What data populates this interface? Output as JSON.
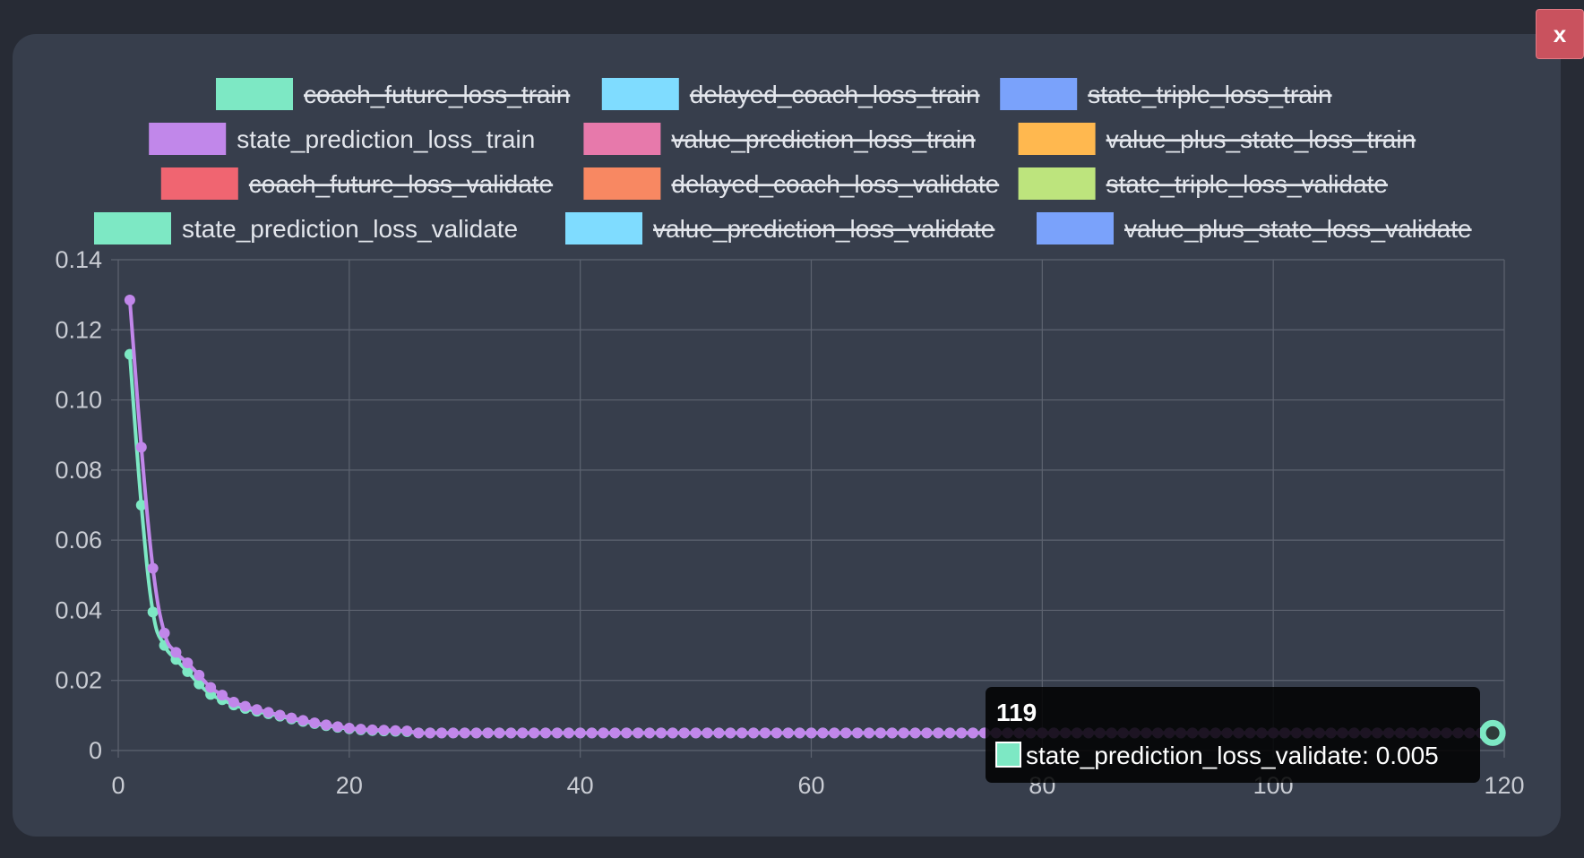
{
  "close_button": {
    "label": "x"
  },
  "chart_data": {
    "type": "line",
    "xlim": [
      0,
      120
    ],
    "ylim": [
      0,
      0.14
    ],
    "x_ticks": [
      "0",
      "20",
      "40",
      "60",
      "80",
      "100",
      "120"
    ],
    "y_ticks": [
      "0",
      "0.02",
      "0.04",
      "0.06",
      "0.08",
      "0.10",
      "0.12",
      "0.14"
    ],
    "grid": true,
    "legend_position": "top",
    "legend": [
      {
        "name": "coach_future_loss_train",
        "color": "#7de8c4",
        "hidden": true
      },
      {
        "name": "delayed_coach_loss_train",
        "color": "#7fdcff",
        "hidden": true
      },
      {
        "name": "state_triple_loss_train",
        "color": "#7aa2fb",
        "hidden": true
      },
      {
        "name": "state_prediction_loss_train",
        "color": "#c187ea",
        "hidden": false
      },
      {
        "name": "value_prediction_loss_train",
        "color": "#e779ab",
        "hidden": true
      },
      {
        "name": "value_plus_state_loss_train",
        "color": "#ffb84f",
        "hidden": true
      },
      {
        "name": "coach_future_loss_validate",
        "color": "#f06571",
        "hidden": true
      },
      {
        "name": "delayed_coach_loss_validate",
        "color": "#f88862",
        "hidden": true
      },
      {
        "name": "state_triple_loss_validate",
        "color": "#bde47d",
        "hidden": true
      },
      {
        "name": "state_prediction_loss_validate",
        "color": "#7de8c4",
        "hidden": false
      },
      {
        "name": "value_prediction_loss_validate",
        "color": "#7fdcff",
        "hidden": true
      },
      {
        "name": "value_plus_state_loss_validate",
        "color": "#7aa2fb",
        "hidden": true
      }
    ],
    "series": [
      {
        "name": "state_prediction_loss_validate",
        "color": "#7de8c4",
        "head": [
          0.113,
          0.07,
          0.0395,
          0.03,
          0.026,
          0.0225,
          0.019,
          0.016,
          0.0145,
          0.013,
          0.012,
          0.0112,
          0.0105,
          0.0098,
          0.009,
          0.0083,
          0.0077,
          0.0071,
          0.0066,
          0.0062,
          0.0059,
          0.0057,
          0.0056,
          0.0055,
          0.0054
        ],
        "tail_value": 0.005,
        "count": 119
      },
      {
        "name": "state_prediction_loss_train",
        "color": "#c187ea",
        "head": [
          0.1285,
          0.0865,
          0.052,
          0.0335,
          0.028,
          0.025,
          0.0215,
          0.018,
          0.0158,
          0.0138,
          0.0126,
          0.0117,
          0.0109,
          0.0101,
          0.0093,
          0.0086,
          0.0079,
          0.0073,
          0.0068,
          0.0064,
          0.0061,
          0.0059,
          0.0058,
          0.0057,
          0.0056
        ],
        "tail_value": 0.005,
        "count": 119
      }
    ],
    "tooltip": {
      "title": "119",
      "series_name": "state_prediction_loss_validate",
      "value": "0.005",
      "text": "state_prediction_loss_validate: 0.005",
      "color": "#7de8c4",
      "x": 119,
      "y": 0.005
    }
  }
}
